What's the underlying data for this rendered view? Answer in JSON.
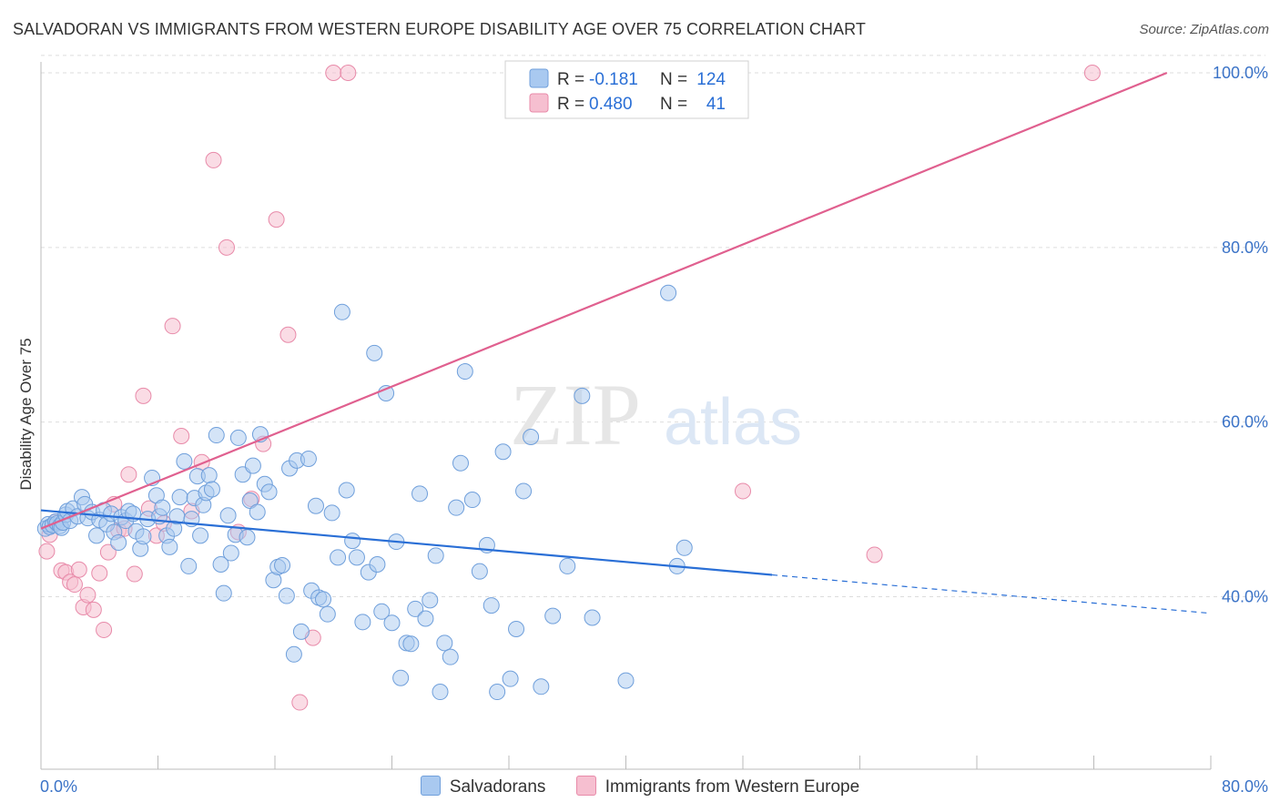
{
  "title": "SALVADORAN VS IMMIGRANTS FROM WESTERN EUROPE DISABILITY AGE OVER 75 CORRELATION CHART",
  "source": "Source: ZipAtlas.com",
  "watermark": {
    "zip": "ZIP",
    "atlas": "atlas"
  },
  "legend_top": [
    {
      "r_label": "R =",
      "r_value": "-0.181",
      "n_label": "N =",
      "n_value": "124"
    },
    {
      "r_label": "R =",
      "r_value": "0.480",
      "n_label": "N =",
      "n_value": "41"
    }
  ],
  "legend_bottom": [
    {
      "label": "Salvadorans"
    },
    {
      "label": "Immigrants from Western Europe"
    }
  ],
  "colors": {
    "blue_fill": "#a9c9f0",
    "blue_stroke": "#6f9fdb",
    "blue_line": "#2a6fd6",
    "pink_fill": "#f6bfd0",
    "pink_stroke": "#e88aa9",
    "pink_line": "#e0608f",
    "axis_label": "#3b73c7",
    "grid": "#dddddd"
  },
  "chart_data": {
    "type": "scatter",
    "title": "SALVADORAN VS IMMIGRANTS FROM WESTERN EUROPE DISABILITY AGE OVER 75 CORRELATION CHART",
    "xlabel": "",
    "ylabel": "Disability Age Over 75",
    "xlim": [
      0,
      80
    ],
    "ylim": [
      22,
      102
    ],
    "x_tick_labels": [
      "0.0%",
      "80.0%"
    ],
    "y_ticks": [
      40,
      60,
      80,
      100
    ],
    "y_tick_labels": [
      "40.0%",
      "60.0%",
      "80.0%",
      "100.0%"
    ],
    "grid": "horizontal dashed",
    "legend_position": "top-center",
    "series": [
      {
        "name": "Salvadorans",
        "r": -0.181,
        "n": 124,
        "trend": {
          "x0": 0,
          "y0": 49.9,
          "x1": 50,
          "y1": 42.5,
          "dashed_to": 80,
          "dashed_y": 38.1
        },
        "points": [
          [
            0.3,
            47.8
          ],
          [
            0.5,
            48.3
          ],
          [
            0.6,
            48.0
          ],
          [
            0.8,
            48.2
          ],
          [
            1.0,
            48.6
          ],
          [
            1.1,
            48.4
          ],
          [
            1.3,
            48.1
          ],
          [
            1.4,
            47.9
          ],
          [
            1.5,
            48.5
          ],
          [
            1.7,
            49.4
          ],
          [
            1.8,
            49.8
          ],
          [
            2.0,
            48.7
          ],
          [
            2.2,
            50.1
          ],
          [
            2.5,
            49.2
          ],
          [
            2.8,
            51.4
          ],
          [
            3.0,
            50.6
          ],
          [
            3.2,
            49.0
          ],
          [
            3.5,
            49.7
          ],
          [
            3.8,
            47.0
          ],
          [
            4.0,
            48.8
          ],
          [
            4.3,
            49.9
          ],
          [
            4.5,
            48.3
          ],
          [
            4.8,
            49.5
          ],
          [
            5.0,
            47.4
          ],
          [
            5.3,
            46.2
          ],
          [
            5.5,
            49.1
          ],
          [
            5.8,
            48.7
          ],
          [
            6.0,
            49.8
          ],
          [
            6.3,
            49.5
          ],
          [
            6.5,
            47.5
          ],
          [
            6.8,
            45.5
          ],
          [
            7.0,
            46.9
          ],
          [
            7.3,
            48.9
          ],
          [
            7.6,
            53.6
          ],
          [
            7.9,
            51.6
          ],
          [
            8.1,
            49.2
          ],
          [
            8.3,
            50.2
          ],
          [
            8.6,
            47.0
          ],
          [
            8.8,
            45.7
          ],
          [
            9.1,
            47.8
          ],
          [
            9.3,
            49.2
          ],
          [
            9.5,
            51.4
          ],
          [
            9.8,
            55.5
          ],
          [
            10.1,
            43.5
          ],
          [
            10.3,
            48.9
          ],
          [
            10.5,
            51.3
          ],
          [
            10.7,
            53.8
          ],
          [
            10.9,
            47.0
          ],
          [
            11.1,
            50.5
          ],
          [
            11.3,
            51.9
          ],
          [
            11.5,
            53.9
          ],
          [
            11.7,
            52.3
          ],
          [
            12.0,
            58.5
          ],
          [
            12.3,
            43.7
          ],
          [
            12.5,
            40.4
          ],
          [
            12.8,
            49.3
          ],
          [
            13.0,
            45.0
          ],
          [
            13.3,
            47.1
          ],
          [
            13.5,
            58.2
          ],
          [
            13.8,
            54.0
          ],
          [
            14.1,
            46.8
          ],
          [
            14.3,
            51.0
          ],
          [
            14.5,
            55.0
          ],
          [
            14.8,
            49.7
          ],
          [
            15.0,
            58.6
          ],
          [
            15.3,
            52.9
          ],
          [
            15.6,
            52.0
          ],
          [
            15.9,
            41.9
          ],
          [
            16.2,
            43.4
          ],
          [
            16.5,
            43.6
          ],
          [
            16.8,
            40.1
          ],
          [
            17.0,
            54.7
          ],
          [
            17.3,
            33.4
          ],
          [
            17.5,
            55.6
          ],
          [
            17.8,
            36.0
          ],
          [
            18.3,
            55.8
          ],
          [
            18.5,
            40.7
          ],
          [
            18.8,
            50.4
          ],
          [
            19.0,
            39.9
          ],
          [
            19.3,
            39.7
          ],
          [
            19.6,
            38.0
          ],
          [
            19.9,
            49.6
          ],
          [
            20.3,
            44.5
          ],
          [
            20.6,
            72.6
          ],
          [
            20.9,
            52.2
          ],
          [
            21.3,
            46.4
          ],
          [
            21.6,
            44.5
          ],
          [
            22.0,
            37.1
          ],
          [
            22.4,
            42.8
          ],
          [
            22.8,
            67.9
          ],
          [
            23.0,
            43.7
          ],
          [
            23.3,
            38.3
          ],
          [
            23.6,
            63.3
          ],
          [
            24.0,
            37.0
          ],
          [
            24.3,
            46.3
          ],
          [
            24.6,
            30.7
          ],
          [
            25.0,
            34.7
          ],
          [
            25.3,
            34.6
          ],
          [
            25.6,
            38.6
          ],
          [
            25.9,
            51.8
          ],
          [
            26.3,
            37.5
          ],
          [
            26.6,
            39.6
          ],
          [
            27.0,
            44.7
          ],
          [
            27.3,
            29.1
          ],
          [
            27.6,
            34.7
          ],
          [
            28.0,
            33.1
          ],
          [
            28.4,
            50.2
          ],
          [
            28.7,
            55.3
          ],
          [
            29.0,
            65.8
          ],
          [
            29.5,
            51.1
          ],
          [
            30.0,
            42.9
          ],
          [
            30.5,
            45.9
          ],
          [
            30.8,
            39.0
          ],
          [
            31.2,
            29.1
          ],
          [
            31.6,
            56.6
          ],
          [
            32.1,
            30.6
          ],
          [
            32.5,
            36.3
          ],
          [
            33.0,
            52.1
          ],
          [
            33.5,
            58.3
          ],
          [
            34.2,
            29.7
          ],
          [
            35.0,
            37.8
          ],
          [
            36.0,
            43.5
          ],
          [
            37.0,
            63.0
          ],
          [
            37.7,
            37.6
          ],
          [
            40.0,
            30.4
          ],
          [
            42.9,
            74.8
          ],
          [
            43.5,
            43.5
          ],
          [
            44.0,
            45.6
          ]
        ]
      },
      {
        "name": "Immigrants from Western Europe",
        "r": 0.48,
        "n": 41,
        "trend": {
          "x0": 0,
          "y0": 47.8,
          "x1": 77,
          "y1": 100.0
        },
        "points": [
          [
            0.4,
            45.2
          ],
          [
            0.6,
            47.1
          ],
          [
            1.0,
            48.6
          ],
          [
            1.4,
            43.0
          ],
          [
            1.7,
            42.8
          ],
          [
            2.0,
            41.7
          ],
          [
            2.3,
            41.4
          ],
          [
            2.6,
            43.1
          ],
          [
            2.9,
            38.8
          ],
          [
            3.2,
            40.2
          ],
          [
            3.6,
            38.5
          ],
          [
            4.0,
            42.7
          ],
          [
            4.3,
            36.2
          ],
          [
            4.6,
            45.1
          ],
          [
            5.0,
            50.6
          ],
          [
            5.3,
            47.6
          ],
          [
            5.7,
            47.8
          ],
          [
            6.0,
            54.0
          ],
          [
            6.4,
            42.6
          ],
          [
            7.0,
            63.0
          ],
          [
            7.4,
            50.1
          ],
          [
            7.9,
            47.0
          ],
          [
            8.4,
            48.4
          ],
          [
            9.0,
            71.0
          ],
          [
            9.6,
            58.4
          ],
          [
            10.3,
            49.8
          ],
          [
            11.0,
            55.4
          ],
          [
            11.8,
            90.0
          ],
          [
            12.7,
            80.0
          ],
          [
            13.5,
            47.4
          ],
          [
            14.4,
            51.2
          ],
          [
            15.2,
            57.5
          ],
          [
            16.1,
            83.2
          ],
          [
            16.9,
            70.0
          ],
          [
            17.7,
            27.9
          ],
          [
            18.6,
            35.3
          ],
          [
            20.0,
            100.0
          ],
          [
            21.0,
            100.0
          ],
          [
            48.0,
            52.1
          ],
          [
            57.0,
            44.8
          ],
          [
            71.9,
            100.0
          ]
        ]
      }
    ]
  }
}
